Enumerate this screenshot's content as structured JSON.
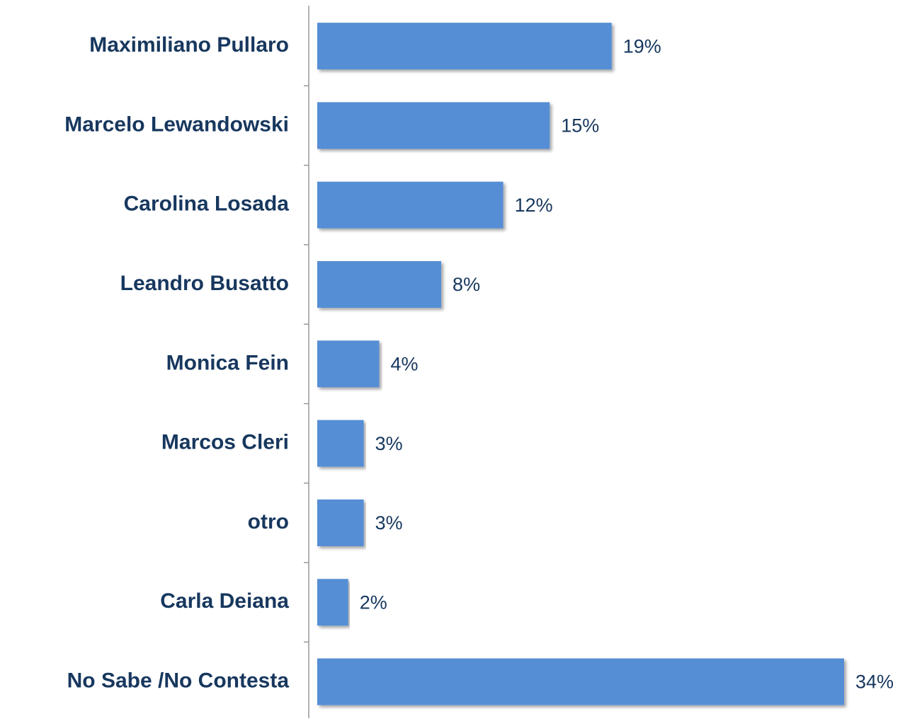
{
  "chart_data": {
    "type": "hbar",
    "categories": [
      "Maximiliano Pullaro",
      "Marcelo Lewandowski",
      "Carolina Losada",
      "Leandro Busatto",
      "Monica Fein",
      "Marcos Cleri",
      "otro",
      "Carla Deiana",
      "No Sabe /No Contesta"
    ],
    "values": [
      19,
      15,
      12,
      8,
      4,
      3,
      3,
      2,
      34
    ],
    "value_labels": [
      "19%",
      "15%",
      "12%",
      "8%",
      "4%",
      "3%",
      "3%",
      "2%",
      "34%"
    ],
    "color": "#558ed5",
    "xlim": [
      0,
      34
    ]
  }
}
